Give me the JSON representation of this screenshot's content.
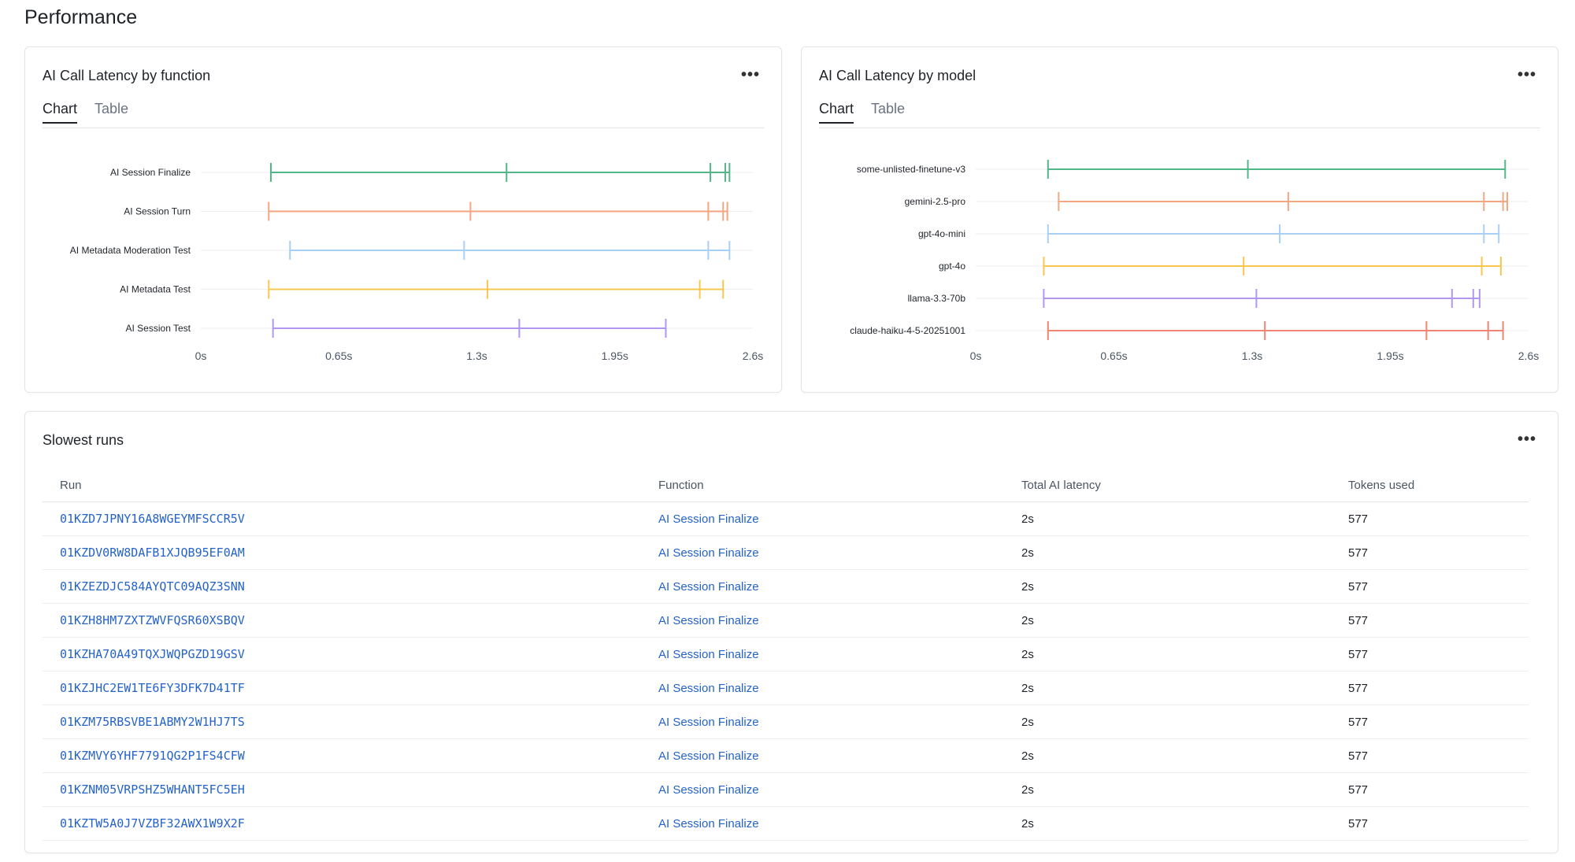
{
  "page": {
    "title": "Performance"
  },
  "cards": {
    "by_function": {
      "title": "AI Call Latency by function",
      "tabs": [
        "Chart",
        "Table"
      ],
      "active_tab": "Chart",
      "more_label": "•••"
    },
    "by_model": {
      "title": "AI Call Latency by model",
      "tabs": [
        "Chart",
        "Table"
      ],
      "active_tab": "Chart",
      "more_label": "•••"
    },
    "slowest": {
      "title": "Slowest runs",
      "more_label": "•••",
      "columns": [
        "Run",
        "Function",
        "Total AI latency",
        "Tokens used"
      ],
      "rows": [
        {
          "run": "01KZD7JPNY16A8WGEYMFSCCR5V",
          "function": "AI Session Finalize",
          "latency": "2s",
          "tokens": "577"
        },
        {
          "run": "01KZDV0RW8DAFB1XJQB95EF0AM",
          "function": "AI Session Finalize",
          "latency": "2s",
          "tokens": "577"
        },
        {
          "run": "01KZEZDJC584AYQTC09AQZ3SNN",
          "function": "AI Session Finalize",
          "latency": "2s",
          "tokens": "577"
        },
        {
          "run": "01KZH8HM7ZXTZWVFQSR60XSBQV",
          "function": "AI Session Finalize",
          "latency": "2s",
          "tokens": "577"
        },
        {
          "run": "01KZHA70A49TQXJWQPGZD19GSV",
          "function": "AI Session Finalize",
          "latency": "2s",
          "tokens": "577"
        },
        {
          "run": "01KZJHC2EW1TE6FY3DFK7D41TF",
          "function": "AI Session Finalize",
          "latency": "2s",
          "tokens": "577"
        },
        {
          "run": "01KZM75RBSVBE1ABMY2W1HJ7TS",
          "function": "AI Session Finalize",
          "latency": "2s",
          "tokens": "577"
        },
        {
          "run": "01KZMVY6YHF7791QG2P1FS4CFW",
          "function": "AI Session Finalize",
          "latency": "2s",
          "tokens": "577"
        },
        {
          "run": "01KZNM05VRPSHZ5WHANT5FC5EH",
          "function": "AI Session Finalize",
          "latency": "2s",
          "tokens": "577"
        },
        {
          "run": "01KZTW5A0J7VZBF32AWX1W9X2F",
          "function": "AI Session Finalize",
          "latency": "2s",
          "tokens": "577"
        }
      ]
    }
  },
  "chart_data": [
    {
      "type": "range",
      "title": "AI Call Latency by function",
      "xlim": [
        0,
        2.6
      ],
      "ticks": [
        0,
        0.65,
        1.3,
        1.95,
        2.6
      ],
      "tick_labels": [
        "0s",
        "0.65s",
        "1.3s",
        "1.95s",
        "2.6s"
      ],
      "series": [
        {
          "name": "AI Session Finalize",
          "color": "#52b788",
          "min": 0.33,
          "max": 2.49,
          "markers": [
            0.33,
            1.44,
            2.4,
            2.47,
            2.49
          ]
        },
        {
          "name": "AI Session Turn",
          "color": "#f4a582",
          "min": 0.32,
          "max": 2.48,
          "markers": [
            0.32,
            1.27,
            2.39,
            2.46,
            2.48
          ]
        },
        {
          "name": "AI Metadata Moderation Test",
          "color": "#a8d0f5",
          "min": 0.42,
          "max": 2.49,
          "markers": [
            0.42,
            1.24,
            2.39,
            2.49
          ]
        },
        {
          "name": "AI Metadata Test",
          "color": "#f9c74f",
          "min": 0.32,
          "max": 2.46,
          "markers": [
            0.32,
            1.35,
            2.35,
            2.46
          ]
        },
        {
          "name": "AI Session Test",
          "color": "#b197f0",
          "min": 0.34,
          "max": 2.19,
          "markers": [
            0.34,
            1.5,
            2.19
          ]
        }
      ]
    },
    {
      "type": "range",
      "title": "AI Call Latency by model",
      "xlim": [
        0,
        2.6
      ],
      "ticks": [
        0,
        0.65,
        1.3,
        1.95,
        2.6
      ],
      "tick_labels": [
        "0s",
        "0.65s",
        "1.3s",
        "1.95s",
        "2.6s"
      ],
      "series": [
        {
          "name": "some-unlisted-finetune-v3",
          "color": "#52b788",
          "min": 0.34,
          "max": 2.49,
          "markers": [
            0.34,
            1.28,
            2.49
          ]
        },
        {
          "name": "gemini-2.5-pro",
          "color": "#f4a582",
          "min": 0.39,
          "max": 2.5,
          "markers": [
            0.39,
            1.47,
            2.39,
            2.48,
            2.5
          ]
        },
        {
          "name": "gpt-4o-mini",
          "color": "#a8d0f5",
          "min": 0.34,
          "max": 2.46,
          "markers": [
            0.34,
            1.43,
            2.39,
            2.46
          ]
        },
        {
          "name": "gpt-4o",
          "color": "#f9c74f",
          "min": 0.32,
          "max": 2.47,
          "markers": [
            0.32,
            1.26,
            2.38,
            2.47
          ]
        },
        {
          "name": "llama-3.3-70b",
          "color": "#b197f0",
          "min": 0.32,
          "max": 2.37,
          "markers": [
            0.32,
            1.32,
            2.24,
            2.34,
            2.37
          ]
        },
        {
          "name": "claude-haiku-4-5-20251001",
          "color": "#f28474",
          "min": 0.34,
          "max": 2.48,
          "markers": [
            0.34,
            1.36,
            2.12,
            2.41,
            2.48
          ]
        }
      ]
    }
  ]
}
